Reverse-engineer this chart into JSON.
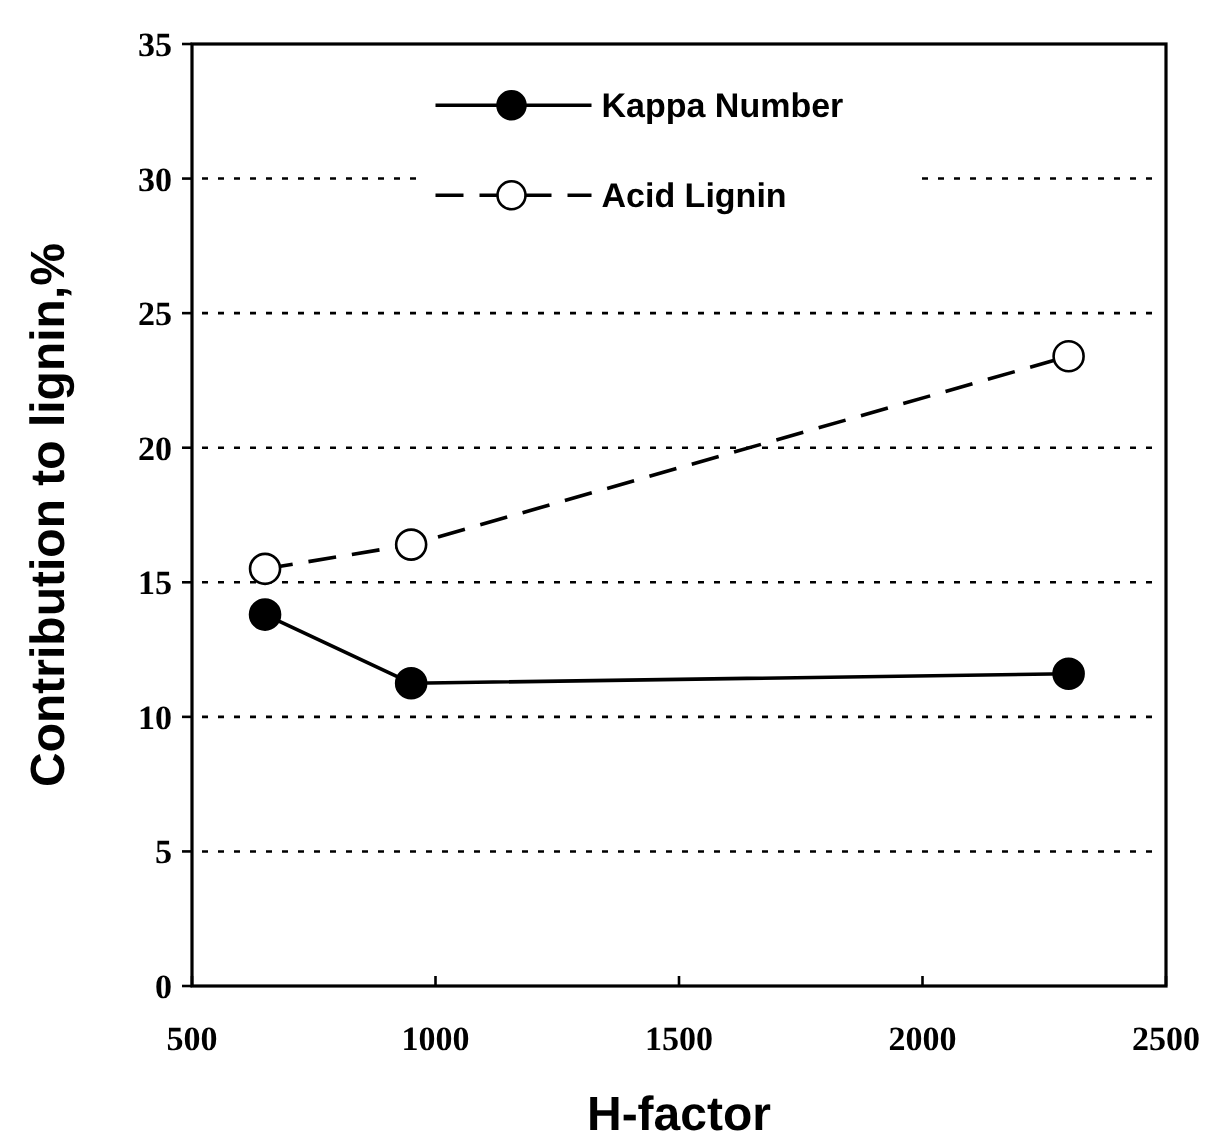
{
  "chart_data": {
    "type": "line",
    "xlabel": "H-factor",
    "ylabel": "Contribution to lignin,%",
    "x": [
      650,
      950,
      2300
    ],
    "series": [
      {
        "name": "Kappa Number",
        "color": "#000000",
        "values": [
          13.8,
          11.25,
          11.6
        ],
        "marker": "circle",
        "line_style": "solid"
      },
      {
        "name": "Acid Lignin",
        "color": "#000000",
        "values": [
          15.5,
          16.4,
          23.4
        ],
        "marker": "circle",
        "line_style": "dashed"
      }
    ],
    "xlim": [
      500,
      2500
    ],
    "xticks": [
      500,
      1000,
      1500,
      2000,
      2500
    ],
    "ylim": [
      0,
      35
    ],
    "yticks": [
      0,
      5,
      10,
      15,
      20,
      25,
      30,
      35
    ],
    "grid": "y",
    "legend": "top"
  }
}
